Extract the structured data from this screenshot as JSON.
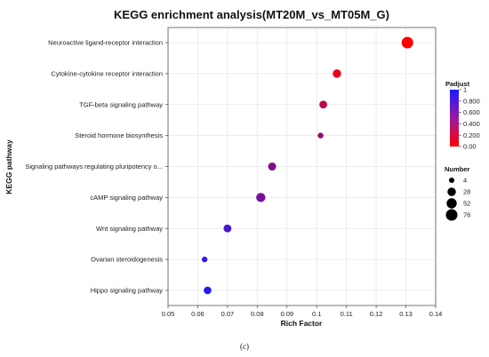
{
  "chart_data": {
    "type": "scatter",
    "title": "KEGG enrichment analysis(MT20M_vs_MT05M_G)",
    "xlabel": "Rich Factor",
    "ylabel": "KEGG pathway",
    "xlim": [
      0.05,
      0.14
    ],
    "xticks": [
      "0.05",
      "0.06",
      "0.07",
      "0.08",
      "0.09",
      "0.1",
      "0.11",
      "0.12",
      "0.13",
      "0.14"
    ],
    "grid": true,
    "categories": [
      "Neuroactive ligand-receptor interaction",
      "Cytokine-cytokine receptor interaction",
      "TGF-beta signaling pathway",
      "Steroid hormone biosynthesis",
      "Signaling pathways regulating pluripotency o...",
      "cAMP signaling pathway",
      "Wnt signaling pathway",
      "Ovarian steroidogenesis",
      "Hippo signaling pathway"
    ],
    "points": [
      {
        "category": "Neuroactive ligand-receptor interaction",
        "x": 0.1305,
        "number": 76,
        "padjust": 0.0
      },
      {
        "category": "Cytokine-cytokine receptor interaction",
        "x": 0.1068,
        "number": 28,
        "padjust": 0.1
      },
      {
        "category": "TGF-beta signaling pathway",
        "x": 0.1022,
        "number": 22,
        "padjust": 0.3
      },
      {
        "category": "Steroid hormone biosynthesis",
        "x": 0.1013,
        "number": 6,
        "padjust": 0.45
      },
      {
        "category": "Signaling pathways regulating pluripotency o...",
        "x": 0.085,
        "number": 24,
        "padjust": 0.55
      },
      {
        "category": "cAMP signaling pathway",
        "x": 0.0812,
        "number": 38,
        "padjust": 0.6
      },
      {
        "category": "Wnt signaling pathway",
        "x": 0.07,
        "number": 22,
        "padjust": 0.8
      },
      {
        "category": "Ovarian steroidogenesis",
        "x": 0.0623,
        "number": 5,
        "padjust": 0.9
      },
      {
        "category": "Hippo signaling pathway",
        "x": 0.0633,
        "number": 20,
        "padjust": 0.95
      }
    ],
    "color_legend": {
      "title": "Padjust",
      "ticks": [
        "1",
        "0.800",
        "0.600",
        "0.400",
        "0.200",
        "0.00"
      ],
      "color_low": "#ff0000",
      "color_high": "#1a1aff"
    },
    "size_legend": {
      "title": "Number",
      "entries": [
        {
          "label": "4",
          "number": 4
        },
        {
          "label": "28",
          "number": 28
        },
        {
          "label": "52",
          "number": 52
        },
        {
          "label": "76",
          "number": 76
        }
      ]
    },
    "caption": "(c)"
  }
}
